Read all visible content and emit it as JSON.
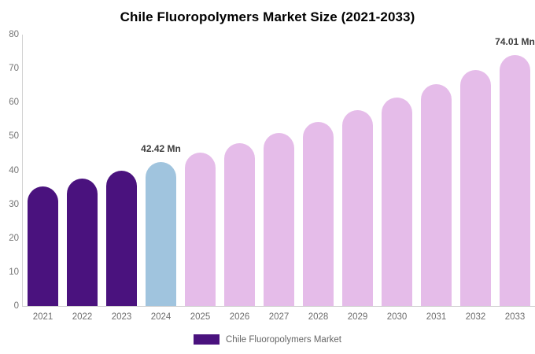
{
  "title": "Chile Fluoropolymers Market Size (2021-2033)",
  "legend": {
    "label": "Chile Fluoropolymers Market",
    "swatch_color": "#4a127e"
  },
  "colors": {
    "historical": "#4a127e",
    "highlight": "#a0c4de",
    "forecast": "#e5bce9",
    "axis_line": "#d2d2d2",
    "tick_text": "#757575",
    "annotation_text": "#3d3d3d"
  },
  "chart_data": {
    "type": "bar",
    "title": "Chile Fluoropolymers Market Size (2021-2033)",
    "xlabel": "",
    "ylabel": "",
    "ylim": [
      0,
      80
    ],
    "y_ticks": [
      0,
      10,
      20,
      30,
      40,
      50,
      60,
      70,
      80
    ],
    "grid": false,
    "legend_position": "bottom",
    "unit": "Mn",
    "categories": [
      "2021",
      "2022",
      "2023",
      "2024",
      "2025",
      "2026",
      "2027",
      "2028",
      "2029",
      "2030",
      "2031",
      "2032",
      "2033"
    ],
    "values": [
      35.24,
      37.49,
      39.88,
      42.42,
      45.13,
      48.01,
      51.07,
      54.33,
      57.8,
      61.49,
      65.41,
      69.58,
      74.01
    ],
    "segments": [
      "historical",
      "historical",
      "historical",
      "highlight",
      "forecast",
      "forecast",
      "forecast",
      "forecast",
      "forecast",
      "forecast",
      "forecast",
      "forecast",
      "forecast"
    ],
    "annotations": [
      {
        "category": "2024",
        "text": "42.42 Mn"
      },
      {
        "category": "2033",
        "text": "74.01 Mn"
      }
    ]
  }
}
